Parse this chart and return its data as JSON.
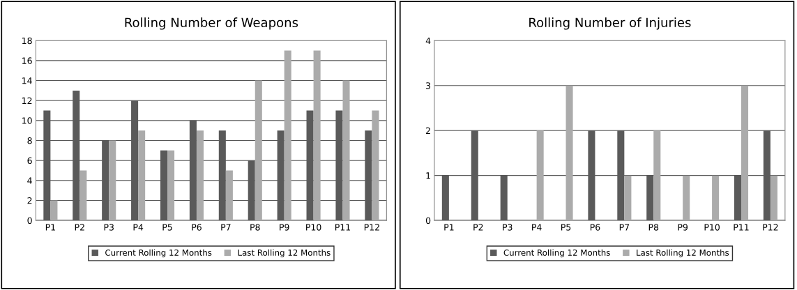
{
  "chart_data": [
    {
      "type": "bar",
      "title": "Rolling Number of Weapons",
      "categories": [
        "P1",
        "P2",
        "P3",
        "P4",
        "P5",
        "P6",
        "P7",
        "P8",
        "P9",
        "P10",
        "P11",
        "P12"
      ],
      "series": [
        {
          "name": "Current Rolling 12 Months",
          "color": "#5a5a5a",
          "values": [
            11,
            13,
            8,
            12,
            7,
            10,
            9,
            6,
            9,
            11,
            11,
            9
          ]
        },
        {
          "name": "Last Rolling 12 Months",
          "color": "#ababab",
          "values": [
            2,
            5,
            8,
            9,
            7,
            9,
            5,
            14,
            17,
            17,
            14,
            11
          ]
        }
      ],
      "ylim": [
        0,
        18
      ],
      "yticks": [
        0,
        2,
        4,
        6,
        8,
        10,
        12,
        14,
        16,
        18
      ],
      "grid": "y",
      "legend": "bottom"
    },
    {
      "type": "bar",
      "title": "Rolling Number of Injuries",
      "categories": [
        "P1",
        "P2",
        "P3",
        "P4",
        "P5",
        "P6",
        "P7",
        "P8",
        "P9",
        "P10",
        "P11",
        "P12"
      ],
      "series": [
        {
          "name": "Current Rolling 12 Months",
          "color": "#5a5a5a",
          "values": [
            1,
            2,
            1,
            0,
            0,
            2,
            2,
            1,
            0,
            0,
            1,
            2
          ]
        },
        {
          "name": "Last Rolling 12 Months",
          "color": "#ababab",
          "values": [
            0,
            0,
            0,
            2,
            3,
            0,
            1,
            2,
            1,
            1,
            3,
            1
          ]
        }
      ],
      "ylim": [
        0,
        4
      ],
      "yticks": [
        0,
        1,
        2,
        3,
        4
      ],
      "grid": "y",
      "legend": "bottom"
    }
  ]
}
